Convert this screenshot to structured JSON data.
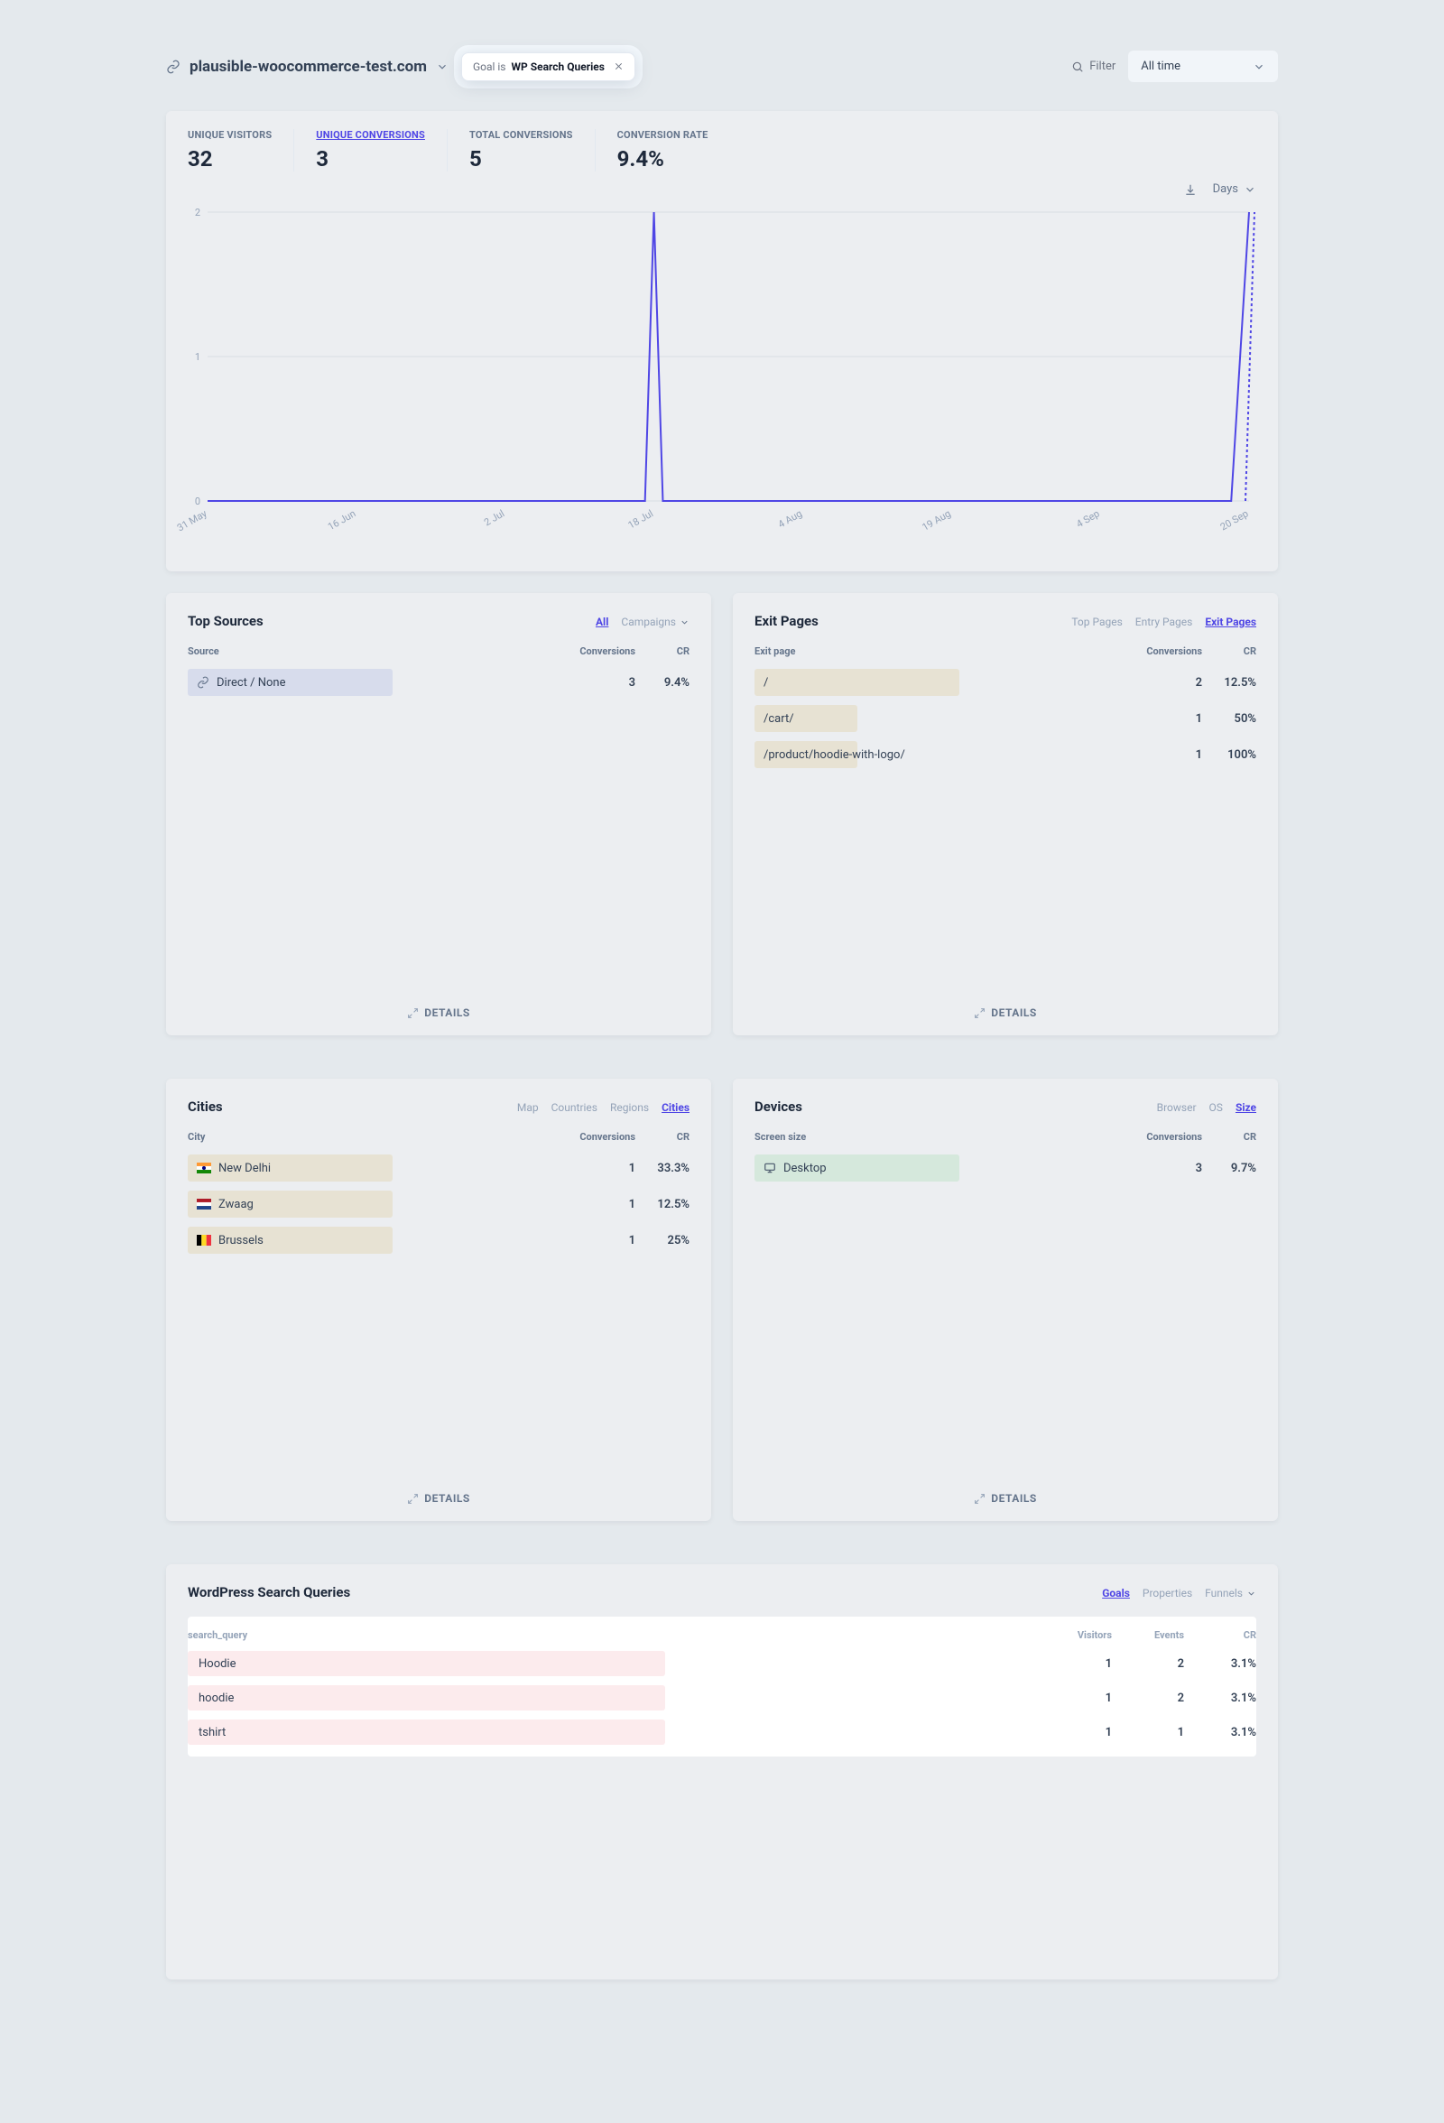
{
  "header": {
    "site_name": "plausible-woocommerce-test.com",
    "filter_pill_prefix": "Goal is ",
    "filter_pill_value": "WP Search Queries",
    "filter_label": "Filter",
    "date_range": "All time"
  },
  "kpis": [
    {
      "label": "UNIQUE VISITORS",
      "value": "32",
      "active": false
    },
    {
      "label": "UNIQUE CONVERSIONS",
      "value": "3",
      "active": true
    },
    {
      "label": "TOTAL CONVERSIONS",
      "value": "5",
      "active": false
    },
    {
      "label": "CONVERSION RATE",
      "value": "9.4%",
      "active": false
    }
  ],
  "chart": {
    "interval_label": "Days",
    "y_ticks": [
      "0",
      "1",
      "2"
    ],
    "x_ticks": [
      "31 May",
      "16 Jun",
      "2 Jul",
      "18 Jul",
      "4 Aug",
      "19 Aug",
      "4 Sep",
      "20 Sep"
    ],
    "y_max": 2,
    "line_color": "#4f46e5",
    "grid_color": "#d8dde4",
    "spike_x_idx": 3,
    "spike_y": 2,
    "end_rise_y": 2
  },
  "panels": {
    "sources": {
      "title": "Top Sources",
      "tabs": [
        "All",
        "Campaigns"
      ],
      "active_tab": "All",
      "col1": "Source",
      "col2": "Conversions",
      "col3": "CR",
      "bar_color": "#d7dcec",
      "rows": [
        {
          "label": "Direct / None",
          "conv": "3",
          "cr": "9.4%",
          "bar_pct": 56,
          "icon": "link"
        }
      ]
    },
    "exit_pages": {
      "title": "Exit Pages",
      "tabs": [
        "Top Pages",
        "Entry Pages",
        "Exit Pages"
      ],
      "active_tab": "Exit Pages",
      "col1": "Exit page",
      "col2": "Conversions",
      "col3": "CR",
      "bar_color": "#e7e2d3",
      "rows": [
        {
          "label": "/",
          "conv": "2",
          "cr": "12.5%",
          "bar_pct": 56
        },
        {
          "label": "/cart/",
          "conv": "1",
          "cr": "50%",
          "bar_pct": 28
        },
        {
          "label": "/product/hoodie-with-logo/",
          "conv": "1",
          "cr": "100%",
          "bar_pct": 28
        }
      ]
    },
    "cities": {
      "title": "Cities",
      "tabs": [
        "Map",
        "Countries",
        "Regions",
        "Cities"
      ],
      "active_tab": "Cities",
      "col1": "City",
      "col2": "Conversions",
      "col3": "CR",
      "bar_color": "#e7e2d3",
      "rows": [
        {
          "label": "New Delhi",
          "conv": "1",
          "cr": "33.3%",
          "bar_pct": 56,
          "flag": "in"
        },
        {
          "label": "Zwaag",
          "conv": "1",
          "cr": "12.5%",
          "bar_pct": 56,
          "flag": "nl"
        },
        {
          "label": "Brussels",
          "conv": "1",
          "cr": "25%",
          "bar_pct": 56,
          "flag": "be"
        }
      ]
    },
    "devices": {
      "title": "Devices",
      "tabs": [
        "Browser",
        "OS",
        "Size"
      ],
      "active_tab": "Size",
      "col1": "Screen size",
      "col2": "Conversions",
      "col3": "CR",
      "bar_color": "#d5e8dc",
      "rows": [
        {
          "label": "Desktop",
          "conv": "3",
          "cr": "9.7%",
          "bar_pct": 56,
          "icon": "monitor"
        }
      ]
    }
  },
  "goals": {
    "title": "WordPress Search Queries",
    "tabs": [
      "Goals",
      "Properties",
      "Funnels"
    ],
    "active_tab": "Goals",
    "col1": "search_query",
    "col2": "Visitors",
    "col3": "Events",
    "col4": "CR",
    "bar_color": "#fcebed",
    "rows": [
      {
        "label": "Hoodie",
        "visitors": "1",
        "events": "2",
        "cr": "3.1%",
        "bar_pct": 56
      },
      {
        "label": "hoodie",
        "visitors": "1",
        "events": "2",
        "cr": "3.1%",
        "bar_pct": 56
      },
      {
        "label": "tshirt",
        "visitors": "1",
        "events": "1",
        "cr": "3.1%",
        "bar_pct": 56
      }
    ]
  },
  "details_label": "DETAILS",
  "flags": {
    "in": [
      [
        "#ff9933",
        "0",
        "33%"
      ],
      [
        "#ffffff",
        "33%",
        "34%"
      ],
      [
        "#138808",
        "67%",
        "33%"
      ]
    ],
    "nl": [
      [
        "#ae1c28",
        "0",
        "33%"
      ],
      [
        "#ffffff",
        "33%",
        "34%"
      ],
      [
        "#21468b",
        "67%",
        "33%"
      ]
    ],
    "be": [
      [
        "#000000",
        "0",
        "33%",
        "v"
      ],
      [
        "#fdda24",
        "33%",
        "34%",
        "v"
      ],
      [
        "#ef3340",
        "67%",
        "33%",
        "v"
      ]
    ]
  }
}
